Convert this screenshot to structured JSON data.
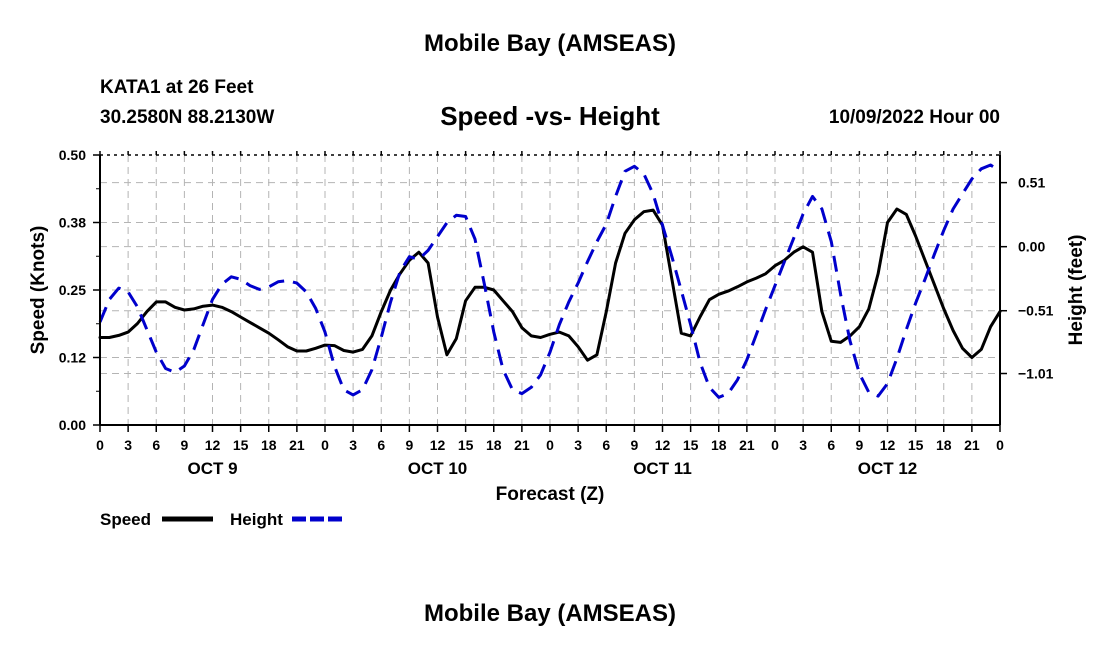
{
  "header": {
    "title": "Mobile Bay (AMSEAS)",
    "station": "KATA1 at 26 Feet",
    "coords": "30.2580N  88.2130W",
    "subtitle": "Speed -vs- Height",
    "datetime": "10/09/2022 Hour 00"
  },
  "footer": {
    "title": "Mobile Bay (AMSEAS)"
  },
  "chart_data": {
    "type": "line",
    "title": "Speed -vs- Height",
    "xlabel": "Forecast (Z)",
    "ylabel_left": "Speed (Knots)",
    "ylabel_right": "Height (feet)",
    "x_range": [
      0,
      96
    ],
    "x_tick_step": 3,
    "x_tick_labels": [
      "0",
      "3",
      "6",
      "9",
      "12",
      "15",
      "18",
      "21",
      "0",
      "3",
      "6",
      "9",
      "12",
      "15",
      "18",
      "21",
      "0",
      "3",
      "6",
      "9",
      "12",
      "15",
      "18",
      "21",
      "0",
      "3",
      "6",
      "9",
      "12",
      "15",
      "18",
      "21",
      "0"
    ],
    "day_labels": [
      {
        "label": "OCT 9",
        "hour": 12
      },
      {
        "label": "OCT 10",
        "hour": 36
      },
      {
        "label": "OCT 11",
        "hour": 60
      },
      {
        "label": "OCT 12",
        "hour": 84
      }
    ],
    "y_left": {
      "min": 0,
      "max": 0.5,
      "ticks": [
        0,
        0.125,
        0.25,
        0.375,
        0.5
      ],
      "tick_labels": [
        "0.00",
        "0.12",
        "0.25",
        "0.38",
        "0.50"
      ]
    },
    "y_right": {
      "min": -1.42,
      "max": 0.73,
      "ticks": [
        -1.01,
        -0.51,
        0.0,
        0.51
      ],
      "tick_labels": [
        "−1.01",
        "−0.51",
        "0.00",
        "0.51"
      ]
    },
    "grid": true,
    "series": [
      {
        "name": "Speed",
        "axis": "left",
        "color": "#000000",
        "dash": "solid",
        "x": [
          0,
          1,
          2,
          3,
          4,
          5,
          6,
          7,
          8,
          9,
          10,
          11,
          12,
          13,
          14,
          15,
          16,
          17,
          18,
          19,
          20,
          21,
          22,
          23,
          24,
          25,
          26,
          27,
          28,
          29,
          30,
          31,
          32,
          33,
          34,
          35,
          36,
          37,
          38,
          39,
          40,
          41,
          42,
          43,
          44,
          45,
          46,
          47,
          48,
          49,
          50,
          51,
          52,
          53,
          54,
          55,
          56,
          57,
          58,
          59,
          60,
          61,
          62,
          63,
          64,
          65,
          66,
          67,
          68,
          69,
          70,
          71,
          72,
          73,
          74,
          75,
          76,
          77,
          78,
          79,
          80,
          81,
          82,
          83,
          84,
          85,
          86,
          87,
          88,
          89,
          90,
          91,
          92,
          93,
          94,
          95,
          96
        ],
        "values": [
          0.162,
          0.162,
          0.166,
          0.172,
          0.188,
          0.21,
          0.228,
          0.228,
          0.218,
          0.213,
          0.215,
          0.22,
          0.222,
          0.218,
          0.21,
          0.2,
          0.19,
          0.18,
          0.17,
          0.158,
          0.145,
          0.137,
          0.137,
          0.142,
          0.148,
          0.147,
          0.138,
          0.135,
          0.14,
          0.165,
          0.21,
          0.25,
          0.28,
          0.305,
          0.32,
          0.3,
          0.2,
          0.13,
          0.16,
          0.23,
          0.255,
          0.255,
          0.25,
          0.23,
          0.21,
          0.18,
          0.165,
          0.162,
          0.168,
          0.172,
          0.165,
          0.145,
          0.12,
          0.13,
          0.21,
          0.3,
          0.355,
          0.38,
          0.395,
          0.398,
          0.37,
          0.27,
          0.17,
          0.165,
          0.2,
          0.232,
          0.242,
          0.248,
          0.256,
          0.265,
          0.272,
          0.28,
          0.295,
          0.305,
          0.32,
          0.33,
          0.32,
          0.21,
          0.155,
          0.153,
          0.165,
          0.182,
          0.215,
          0.28,
          0.375,
          0.4,
          0.39,
          0.35,
          0.305,
          0.26,
          0.215,
          0.175,
          0.142,
          0.125,
          0.14,
          0.182,
          0.21
        ]
      },
      {
        "name": "Height",
        "axis": "right",
        "color": "#0000cc",
        "dash": "dashed",
        "x": [
          0,
          1,
          2,
          3,
          4,
          5,
          6,
          7,
          8,
          9,
          10,
          11,
          12,
          13,
          14,
          15,
          16,
          17,
          18,
          19,
          20,
          21,
          22,
          23,
          24,
          25,
          26,
          27,
          28,
          29,
          30,
          31,
          32,
          33,
          34,
          35,
          36,
          37,
          38,
          39,
          40,
          41,
          42,
          43,
          44,
          45,
          46,
          47,
          48,
          49,
          50,
          51,
          52,
          53,
          54,
          55,
          56,
          57,
          58,
          59,
          60,
          61,
          62,
          63,
          64,
          65,
          66,
          67,
          68,
          69,
          70,
          71,
          72,
          73,
          74,
          75,
          76,
          77,
          78,
          79,
          80,
          81,
          82,
          83,
          84,
          85,
          86,
          87,
          88,
          89,
          90,
          91,
          92,
          93,
          94,
          95,
          96
        ],
        "values": [
          -0.6,
          -0.42,
          -0.33,
          -0.36,
          -0.48,
          -0.66,
          -0.84,
          -0.97,
          -1.0,
          -0.95,
          -0.82,
          -0.62,
          -0.42,
          -0.3,
          -0.24,
          -0.26,
          -0.31,
          -0.34,
          -0.32,
          -0.28,
          -0.27,
          -0.29,
          -0.36,
          -0.49,
          -0.68,
          -0.95,
          -1.14,
          -1.18,
          -1.14,
          -0.98,
          -0.72,
          -0.44,
          -0.2,
          -0.08,
          -0.1,
          -0.03,
          0.08,
          0.19,
          0.25,
          0.24,
          0.06,
          -0.3,
          -0.68,
          -0.98,
          -1.14,
          -1.17,
          -1.12,
          -1.02,
          -0.84,
          -0.62,
          -0.44,
          -0.29,
          -0.12,
          0.04,
          0.18,
          0.4,
          0.6,
          0.64,
          0.58,
          0.42,
          0.17,
          -0.08,
          -0.35,
          -0.62,
          -0.92,
          -1.12,
          -1.2,
          -1.17,
          -1.06,
          -0.9,
          -0.7,
          -0.5,
          -0.31,
          -0.12,
          0.07,
          0.26,
          0.4,
          0.3,
          0.04,
          -0.38,
          -0.75,
          -1.01,
          -1.16,
          -1.19,
          -1.09,
          -0.89,
          -0.66,
          -0.45,
          -0.26,
          -0.06,
          0.13,
          0.3,
          0.42,
          0.54,
          0.62,
          0.65,
          0.6
        ]
      }
    ],
    "legend": {
      "position": "bottom-left",
      "items": [
        "Speed",
        "Height"
      ]
    }
  }
}
